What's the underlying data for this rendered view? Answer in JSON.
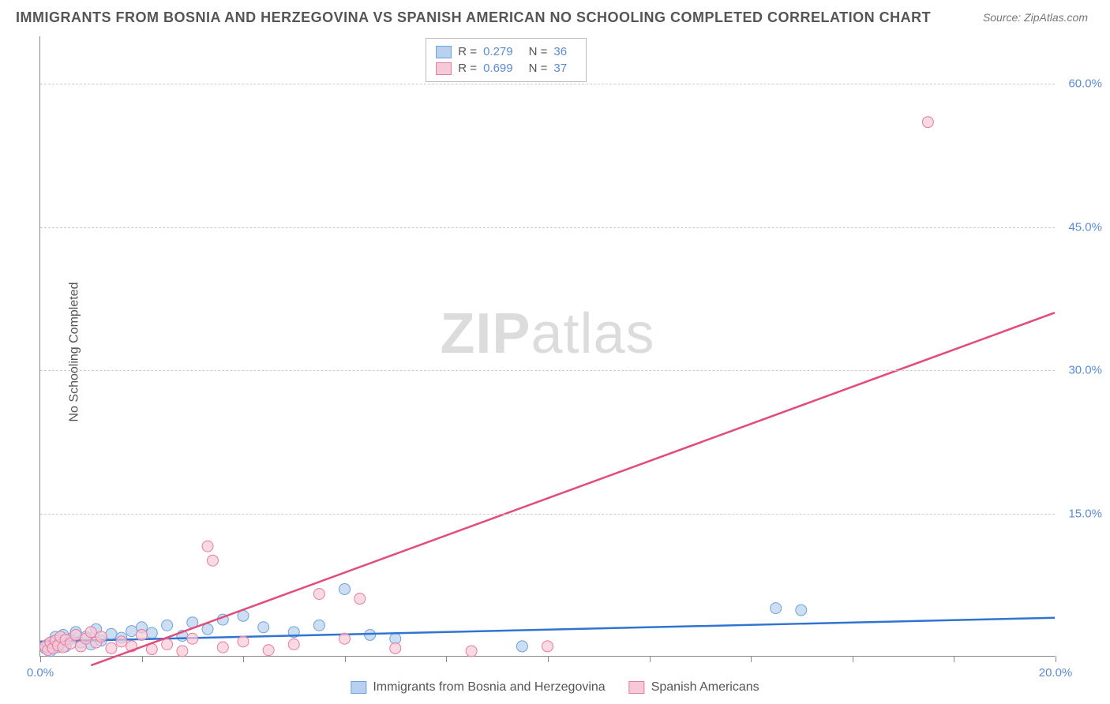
{
  "title": "IMMIGRANTS FROM BOSNIA AND HERZEGOVINA VS SPANISH AMERICAN NO SCHOOLING COMPLETED CORRELATION CHART",
  "source": "Source: ZipAtlas.com",
  "y_axis_label": "No Schooling Completed",
  "watermark_bold": "ZIP",
  "watermark_light": "atlas",
  "chart": {
    "type": "scatter",
    "xlim": [
      0,
      20
    ],
    "ylim": [
      0,
      65
    ],
    "x_ticks": [
      0,
      2,
      4,
      6,
      8,
      10,
      12,
      14,
      16,
      18,
      20
    ],
    "x_tick_labels": {
      "0": "0.0%",
      "20": "20.0%"
    },
    "y_ticks": [
      15,
      30,
      45,
      60
    ],
    "y_tick_labels": [
      "15.0%",
      "30.0%",
      "45.0%",
      "60.0%"
    ],
    "grid_color": "#cccccc",
    "background_color": "#ffffff",
    "series": [
      {
        "name": "Immigrants from Bosnia and Herzegovina",
        "color_fill": "#b8d0ee",
        "color_stroke": "#6aa3e0",
        "line_color": "#2e74d0",
        "r_value": "0.279",
        "n_value": "36",
        "trend": {
          "x1": 0,
          "y1": 1.5,
          "x2": 20,
          "y2": 4.0
        },
        "points": [
          [
            0.1,
            0.8
          ],
          [
            0.15,
            1.2
          ],
          [
            0.2,
            0.5
          ],
          [
            0.25,
            1.5
          ],
          [
            0.3,
            2.0
          ],
          [
            0.35,
            0.9
          ],
          [
            0.4,
            1.3
          ],
          [
            0.45,
            2.2
          ],
          [
            0.5,
            1.0
          ],
          [
            0.6,
            1.8
          ],
          [
            0.7,
            2.5
          ],
          [
            0.8,
            1.4
          ],
          [
            0.9,
            2.0
          ],
          [
            1.0,
            1.2
          ],
          [
            1.1,
            2.8
          ],
          [
            1.2,
            1.6
          ],
          [
            1.4,
            2.3
          ],
          [
            1.6,
            1.9
          ],
          [
            1.8,
            2.6
          ],
          [
            2.0,
            3.0
          ],
          [
            2.2,
            2.4
          ],
          [
            2.5,
            3.2
          ],
          [
            2.8,
            2.1
          ],
          [
            3.0,
            3.5
          ],
          [
            3.3,
            2.8
          ],
          [
            3.6,
            3.8
          ],
          [
            4.0,
            4.2
          ],
          [
            4.4,
            3.0
          ],
          [
            5.0,
            2.5
          ],
          [
            5.5,
            3.2
          ],
          [
            6.0,
            7.0
          ],
          [
            6.5,
            2.2
          ],
          [
            7.0,
            1.8
          ],
          [
            9.5,
            1.0
          ],
          [
            14.5,
            5.0
          ],
          [
            15.0,
            4.8
          ]
        ]
      },
      {
        "name": "Spanish Americans",
        "color_fill": "#f6c9d6",
        "color_stroke": "#e87ba1",
        "line_color": "#e34b7a",
        "r_value": "0.699",
        "n_value": "37",
        "trend": {
          "x1": 1.0,
          "y1": -1.0,
          "x2": 20,
          "y2": 36.0
        },
        "points": [
          [
            0.1,
            1.0
          ],
          [
            0.15,
            0.6
          ],
          [
            0.2,
            1.4
          ],
          [
            0.25,
            0.8
          ],
          [
            0.3,
            1.6
          ],
          [
            0.35,
            1.1
          ],
          [
            0.4,
            2.0
          ],
          [
            0.45,
            0.9
          ],
          [
            0.5,
            1.7
          ],
          [
            0.6,
            1.3
          ],
          [
            0.7,
            2.2
          ],
          [
            0.8,
            1.0
          ],
          [
            0.9,
            1.8
          ],
          [
            1.0,
            2.5
          ],
          [
            1.1,
            1.4
          ],
          [
            1.2,
            2.0
          ],
          [
            1.4,
            0.8
          ],
          [
            1.6,
            1.5
          ],
          [
            1.8,
            1.0
          ],
          [
            2.0,
            2.2
          ],
          [
            2.2,
            0.7
          ],
          [
            2.5,
            1.2
          ],
          [
            2.8,
            0.5
          ],
          [
            3.0,
            1.8
          ],
          [
            3.3,
            11.5
          ],
          [
            3.4,
            10.0
          ],
          [
            3.6,
            0.9
          ],
          [
            4.0,
            1.5
          ],
          [
            4.5,
            0.6
          ],
          [
            5.0,
            1.2
          ],
          [
            5.5,
            6.5
          ],
          [
            6.0,
            1.8
          ],
          [
            6.3,
            6.0
          ],
          [
            7.0,
            0.8
          ],
          [
            8.5,
            0.5
          ],
          [
            10.0,
            1.0
          ],
          [
            17.5,
            56.0
          ]
        ]
      }
    ]
  },
  "legend_top": [
    {
      "swatch_fill": "#b8d0ee",
      "swatch_stroke": "#6aa3e0",
      "r_label": "R =",
      "r_val": "0.279",
      "n_label": "N =",
      "n_val": "36"
    },
    {
      "swatch_fill": "#f6c9d6",
      "swatch_stroke": "#e87ba1",
      "r_label": "R =",
      "r_val": "0.699",
      "n_label": "N =",
      "n_val": "37"
    }
  ],
  "legend_bottom": [
    {
      "swatch_fill": "#b8d0ee",
      "swatch_stroke": "#6aa3e0",
      "label": "Immigrants from Bosnia and Herzegovina"
    },
    {
      "swatch_fill": "#f6c9d6",
      "swatch_stroke": "#e87ba1",
      "label": "Spanish Americans"
    }
  ]
}
